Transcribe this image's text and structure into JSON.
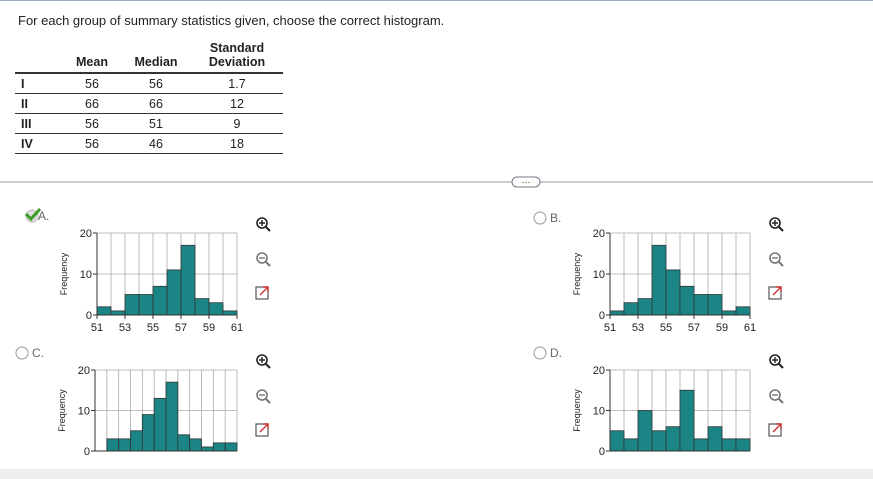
{
  "prompt": "For each group of summary statistics given, choose the correct histogram.",
  "table": {
    "headers": [
      "Mean",
      "Median",
      "Standard Deviation"
    ],
    "rows": [
      [
        "I",
        "56",
        "56",
        "1.7"
      ],
      [
        "II",
        "66",
        "66",
        "12"
      ],
      [
        "III",
        "56",
        "51",
        "9"
      ],
      [
        "IV",
        "56",
        "46",
        "18"
      ]
    ]
  },
  "options": [
    {
      "label": "A.",
      "selected": true
    },
    {
      "label": "B.",
      "selected": false
    },
    {
      "label": "C.",
      "selected": false
    },
    {
      "label": "D.",
      "selected": false
    }
  ],
  "chart_data": [
    {
      "type": "histogram",
      "ylabel": "Frequency",
      "bins": [
        51,
        52,
        53,
        54,
        55,
        56,
        57,
        58,
        59,
        60,
        61
      ],
      "values": [
        2,
        1,
        5,
        5,
        7,
        11,
        17,
        4,
        3,
        1
      ],
      "color": "#1b8585",
      "xlim": [
        51,
        61
      ],
      "xticks": [
        51,
        53,
        55,
        57,
        59,
        61
      ],
      "ylim": [
        0,
        20
      ],
      "yticks": [
        0,
        10,
        20
      ],
      "grid": true
    },
    {
      "type": "histogram",
      "ylabel": "Frequency",
      "bins": [
        51,
        52,
        53,
        54,
        55,
        56,
        57,
        58,
        59,
        60,
        61
      ],
      "values": [
        1,
        3,
        4,
        17,
        11,
        7,
        5,
        5,
        1,
        2
      ],
      "color": "#1b8585",
      "xlim": [
        51,
        61
      ],
      "xticks": [
        51,
        53,
        55,
        57,
        59,
        61
      ],
      "ylim": [
        0,
        20
      ],
      "yticks": [
        0,
        10,
        20
      ],
      "grid": true
    },
    {
      "type": "histogram",
      "ylabel": "Frequency",
      "bins": [
        51,
        52,
        53,
        54,
        55,
        56,
        57,
        58,
        59,
        60,
        61,
        62
      ],
      "values": [
        3,
        3,
        5,
        9,
        13,
        17,
        4,
        3,
        1,
        2,
        2
      ],
      "color": "#1b8585",
      "xlim": [
        50,
        62
      ],
      "ylim": [
        0,
        20
      ],
      "yticks": [
        0,
        10,
        20
      ],
      "grid": true
    },
    {
      "type": "histogram",
      "ylabel": "Frequency",
      "bins": [
        51,
        52,
        53,
        54,
        55,
        56,
        57,
        58,
        59,
        60,
        61
      ],
      "values": [
        5,
        3,
        10,
        5,
        6,
        15,
        3,
        6,
        3,
        3
      ],
      "color": "#1b8585",
      "xlim": [
        51,
        61
      ],
      "ylim": [
        0,
        20
      ],
      "yticks": [
        0,
        10,
        20
      ],
      "grid": true
    }
  ]
}
